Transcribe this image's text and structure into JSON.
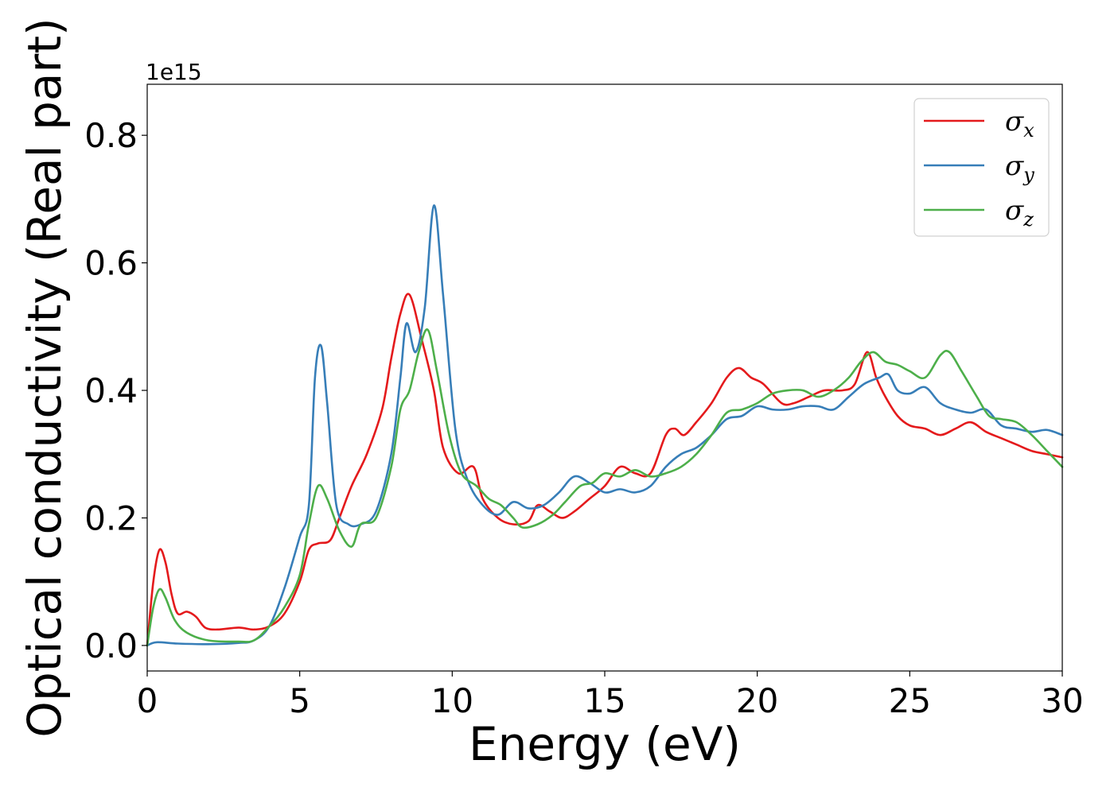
{
  "chart_data": {
    "type": "line",
    "xlabel": "Energy (eV)",
    "ylabel": "Optical conductivity (Real part)",
    "y_offset_text": "1e15",
    "xlim": [
      0,
      30
    ],
    "ylim": [
      -0.04,
      0.88
    ],
    "x_ticks": [
      "0",
      "5",
      "10",
      "15",
      "20",
      "25",
      "30"
    ],
    "y_ticks": [
      "0.0",
      "0.2",
      "0.4",
      "0.6",
      "0.8"
    ],
    "legend_position": "top-right",
    "grid": false,
    "series": [
      {
        "name": "σx",
        "symbol": "σ",
        "subscript": "x",
        "color": "#e41a1c",
        "points": [
          [
            0,
            0
          ],
          [
            0.2,
            0.1
          ],
          [
            0.4,
            0.15
          ],
          [
            0.6,
            0.13
          ],
          [
            0.8,
            0.08
          ],
          [
            1.0,
            0.05
          ],
          [
            1.3,
            0.053
          ],
          [
            1.6,
            0.045
          ],
          [
            1.9,
            0.028
          ],
          [
            2.3,
            0.025
          ],
          [
            3.0,
            0.028
          ],
          [
            3.5,
            0.025
          ],
          [
            4.0,
            0.03
          ],
          [
            4.5,
            0.05
          ],
          [
            5.0,
            0.1
          ],
          [
            5.3,
            0.15
          ],
          [
            5.6,
            0.16
          ],
          [
            6.0,
            0.165
          ],
          [
            6.3,
            0.2
          ],
          [
            6.7,
            0.25
          ],
          [
            7.2,
            0.3
          ],
          [
            7.7,
            0.37
          ],
          [
            8.0,
            0.45
          ],
          [
            8.3,
            0.52
          ],
          [
            8.6,
            0.55
          ],
          [
            9.0,
            0.48
          ],
          [
            9.4,
            0.4
          ],
          [
            9.7,
            0.31
          ],
          [
            10.2,
            0.27
          ],
          [
            10.7,
            0.28
          ],
          [
            11.0,
            0.23
          ],
          [
            11.5,
            0.2
          ],
          [
            12.0,
            0.19
          ],
          [
            12.5,
            0.195
          ],
          [
            12.8,
            0.22
          ],
          [
            13.2,
            0.21
          ],
          [
            13.6,
            0.2
          ],
          [
            14.0,
            0.21
          ],
          [
            14.5,
            0.23
          ],
          [
            15.0,
            0.25
          ],
          [
            15.5,
            0.28
          ],
          [
            16.0,
            0.27
          ],
          [
            16.5,
            0.27
          ],
          [
            17.0,
            0.33
          ],
          [
            17.3,
            0.34
          ],
          [
            17.6,
            0.33
          ],
          [
            18.0,
            0.35
          ],
          [
            18.5,
            0.38
          ],
          [
            19.0,
            0.42
          ],
          [
            19.4,
            0.435
          ],
          [
            19.8,
            0.42
          ],
          [
            20.2,
            0.41
          ],
          [
            20.8,
            0.38
          ],
          [
            21.2,
            0.38
          ],
          [
            21.7,
            0.39
          ],
          [
            22.2,
            0.4
          ],
          [
            22.8,
            0.4
          ],
          [
            23.2,
            0.41
          ],
          [
            23.6,
            0.46
          ],
          [
            23.9,
            0.42
          ],
          [
            24.2,
            0.39
          ],
          [
            24.6,
            0.36
          ],
          [
            25.0,
            0.345
          ],
          [
            25.5,
            0.34
          ],
          [
            26.0,
            0.33
          ],
          [
            26.5,
            0.34
          ],
          [
            27.0,
            0.35
          ],
          [
            27.5,
            0.335
          ],
          [
            28.0,
            0.325
          ],
          [
            28.5,
            0.315
          ],
          [
            29.0,
            0.305
          ],
          [
            29.5,
            0.3
          ],
          [
            30.0,
            0.295
          ]
        ]
      },
      {
        "name": "σy",
        "symbol": "σ",
        "subscript": "y",
        "color": "#377eb8",
        "points": [
          [
            0,
            0
          ],
          [
            0.3,
            0.005
          ],
          [
            1.0,
            0.003
          ],
          [
            2.0,
            0.002
          ],
          [
            3.0,
            0.004
          ],
          [
            3.5,
            0.008
          ],
          [
            4.0,
            0.03
          ],
          [
            4.5,
            0.09
          ],
          [
            5.0,
            0.17
          ],
          [
            5.3,
            0.22
          ],
          [
            5.5,
            0.42
          ],
          [
            5.7,
            0.47
          ],
          [
            5.9,
            0.38
          ],
          [
            6.2,
            0.22
          ],
          [
            6.6,
            0.19
          ],
          [
            7.0,
            0.19
          ],
          [
            7.5,
            0.21
          ],
          [
            8.0,
            0.3
          ],
          [
            8.3,
            0.42
          ],
          [
            8.5,
            0.505
          ],
          [
            8.8,
            0.46
          ],
          [
            9.1,
            0.53
          ],
          [
            9.4,
            0.69
          ],
          [
            9.7,
            0.55
          ],
          [
            10.1,
            0.34
          ],
          [
            10.5,
            0.26
          ],
          [
            11.0,
            0.22
          ],
          [
            11.5,
            0.205
          ],
          [
            12.0,
            0.225
          ],
          [
            12.5,
            0.215
          ],
          [
            13.0,
            0.22
          ],
          [
            13.5,
            0.24
          ],
          [
            14.0,
            0.265
          ],
          [
            14.5,
            0.255
          ],
          [
            15.0,
            0.24
          ],
          [
            15.5,
            0.245
          ],
          [
            16.0,
            0.24
          ],
          [
            16.5,
            0.25
          ],
          [
            17.0,
            0.28
          ],
          [
            17.5,
            0.3
          ],
          [
            18.0,
            0.31
          ],
          [
            18.5,
            0.33
          ],
          [
            19.0,
            0.355
          ],
          [
            19.5,
            0.36
          ],
          [
            20.0,
            0.375
          ],
          [
            20.5,
            0.37
          ],
          [
            21.0,
            0.37
          ],
          [
            21.5,
            0.375
          ],
          [
            22.0,
            0.375
          ],
          [
            22.5,
            0.37
          ],
          [
            23.0,
            0.39
          ],
          [
            23.5,
            0.41
          ],
          [
            24.0,
            0.42
          ],
          [
            24.3,
            0.425
          ],
          [
            24.6,
            0.4
          ],
          [
            25.0,
            0.395
          ],
          [
            25.5,
            0.405
          ],
          [
            26.0,
            0.38
          ],
          [
            26.5,
            0.37
          ],
          [
            27.0,
            0.365
          ],
          [
            27.5,
            0.37
          ],
          [
            28.0,
            0.345
          ],
          [
            28.5,
            0.34
          ],
          [
            29.0,
            0.335
          ],
          [
            29.5,
            0.338
          ],
          [
            30.0,
            0.33
          ]
        ]
      },
      {
        "name": "σz",
        "symbol": "σ",
        "subscript": "z",
        "color": "#4daf4a",
        "points": [
          [
            0,
            0
          ],
          [
            0.2,
            0.06
          ],
          [
            0.4,
            0.088
          ],
          [
            0.6,
            0.075
          ],
          [
            0.9,
            0.04
          ],
          [
            1.3,
            0.02
          ],
          [
            2.0,
            0.008
          ],
          [
            3.0,
            0.006
          ],
          [
            3.5,
            0.008
          ],
          [
            4.0,
            0.03
          ],
          [
            4.5,
            0.06
          ],
          [
            5.0,
            0.11
          ],
          [
            5.3,
            0.19
          ],
          [
            5.6,
            0.25
          ],
          [
            5.9,
            0.23
          ],
          [
            6.3,
            0.18
          ],
          [
            6.7,
            0.155
          ],
          [
            7.0,
            0.19
          ],
          [
            7.5,
            0.2
          ],
          [
            8.0,
            0.28
          ],
          [
            8.3,
            0.37
          ],
          [
            8.6,
            0.4
          ],
          [
            8.9,
            0.46
          ],
          [
            9.2,
            0.495
          ],
          [
            9.5,
            0.43
          ],
          [
            9.9,
            0.33
          ],
          [
            10.3,
            0.27
          ],
          [
            10.8,
            0.25
          ],
          [
            11.2,
            0.23
          ],
          [
            11.6,
            0.22
          ],
          [
            12.0,
            0.2
          ],
          [
            12.3,
            0.185
          ],
          [
            12.8,
            0.19
          ],
          [
            13.3,
            0.205
          ],
          [
            13.7,
            0.225
          ],
          [
            14.2,
            0.25
          ],
          [
            14.6,
            0.255
          ],
          [
            15.0,
            0.27
          ],
          [
            15.5,
            0.265
          ],
          [
            16.0,
            0.275
          ],
          [
            16.5,
            0.265
          ],
          [
            17.0,
            0.27
          ],
          [
            17.5,
            0.28
          ],
          [
            18.0,
            0.3
          ],
          [
            18.5,
            0.33
          ],
          [
            19.0,
            0.365
          ],
          [
            19.5,
            0.37
          ],
          [
            20.0,
            0.38
          ],
          [
            20.5,
            0.395
          ],
          [
            21.0,
            0.4
          ],
          [
            21.5,
            0.4
          ],
          [
            22.0,
            0.39
          ],
          [
            22.5,
            0.4
          ],
          [
            23.0,
            0.42
          ],
          [
            23.4,
            0.445
          ],
          [
            23.8,
            0.46
          ],
          [
            24.2,
            0.445
          ],
          [
            24.6,
            0.44
          ],
          [
            25.0,
            0.43
          ],
          [
            25.5,
            0.42
          ],
          [
            26.0,
            0.455
          ],
          [
            26.3,
            0.46
          ],
          [
            26.7,
            0.43
          ],
          [
            27.2,
            0.39
          ],
          [
            27.6,
            0.36
          ],
          [
            28.0,
            0.355
          ],
          [
            28.5,
            0.35
          ],
          [
            29.0,
            0.33
          ],
          [
            29.5,
            0.305
          ],
          [
            30.0,
            0.28
          ]
        ]
      }
    ]
  }
}
